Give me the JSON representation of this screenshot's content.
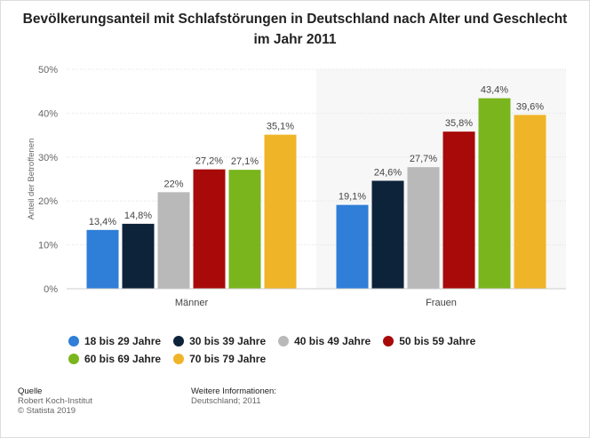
{
  "title": "Bevölkerungsanteil mit Schlafstörungen in Deutschland nach Alter und Geschlecht im Jahr 2011",
  "chart_data": {
    "type": "bar",
    "categories": [
      "Männer",
      "Frauen"
    ],
    "series": [
      {
        "name": "18 bis 29 Jahre",
        "color": "#2f7ed8",
        "values": [
          13.4,
          19.1
        ],
        "labels": [
          "13,4%",
          "19,1%"
        ]
      },
      {
        "name": "30 bis 39 Jahre",
        "color": "#0d233a",
        "values": [
          14.8,
          24.6
        ],
        "labels": [
          "14,8%",
          "24,6%"
        ]
      },
      {
        "name": "40 bis 49 Jahre",
        "color": "#b9b9b9",
        "values": [
          22,
          27.7
        ],
        "labels": [
          "22%",
          "27,7%"
        ]
      },
      {
        "name": "50 bis 59 Jahre",
        "color": "#a80a0a",
        "values": [
          27.2,
          35.8
        ],
        "labels": [
          "27,2%",
          "35,8%"
        ]
      },
      {
        "name": "60 bis 69 Jahre",
        "color": "#7ab51d",
        "values": [
          27.1,
          43.4
        ],
        "labels": [
          "27,1%",
          "43,4%"
        ]
      },
      {
        "name": "70 bis 79 Jahre",
        "color": "#f0b428",
        "values": [
          35.1,
          39.6
        ],
        "labels": [
          "35,1%",
          "39,6%"
        ]
      }
    ],
    "ylabel": "Anteil der Betroffenen",
    "ylim": [
      0,
      50
    ],
    "yticks": [
      "0%",
      "10%",
      "20%",
      "30%",
      "40%",
      "50%"
    ],
    "grid": true,
    "legend_position": "bottom"
  },
  "footer": {
    "source_head": "Quelle",
    "source_line1": "Robert Koch-Institut",
    "source_line2": "© Statista 2019",
    "info_head": "Weitere Informationen:",
    "info_line1": "Deutschland; 2011"
  }
}
